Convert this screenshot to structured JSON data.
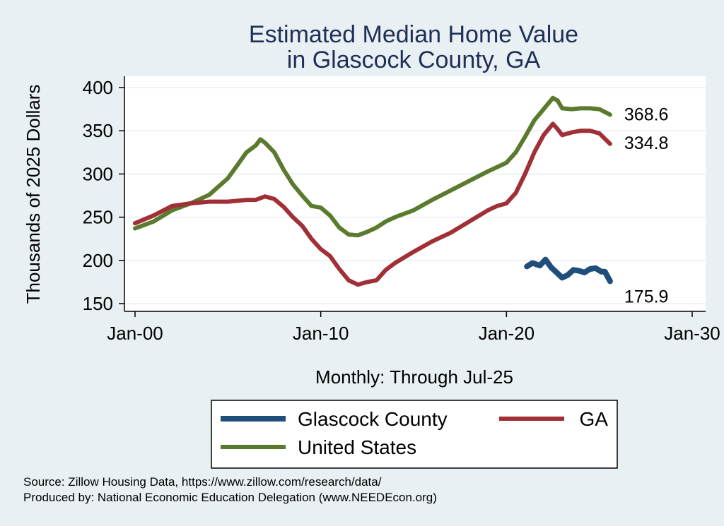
{
  "chart_data": {
    "type": "line",
    "title": [
      "Estimated Median Home Value",
      "in Glascock County, GA"
    ],
    "ylabel": "Thousands of 2025 Dollars",
    "xlabel": "Monthly: Through Jul-25",
    "xlim": [
      2000,
      2030
    ],
    "ylim": [
      140,
      410
    ],
    "yticks": [
      150,
      200,
      250,
      300,
      350,
      400
    ],
    "yticklabels": [
      "150",
      "200",
      "250",
      "300",
      "350",
      "400"
    ],
    "xticks": [
      2000,
      2010,
      2020,
      2030
    ],
    "xticklabels": [
      "Jan-00",
      "Jan-10",
      "Jan-20",
      "Jan-30"
    ],
    "grid": "horizontal",
    "series": [
      {
        "name": "United States",
        "color": "#5a7a2e",
        "end_label": "368.6",
        "x": [
          2000,
          2001,
          2002,
          2003,
          2004,
          2005,
          2005.5,
          2006,
          2006.5,
          2006.75,
          2007,
          2007.5,
          2008,
          2008.5,
          2009,
          2009.5,
          2010,
          2010.5,
          2011,
          2011.5,
          2012,
          2012.5,
          2013,
          2013.5,
          2014,
          2014.5,
          2015,
          2016,
          2017,
          2018,
          2019,
          2019.5,
          2020,
          2020.5,
          2021,
          2021.5,
          2022,
          2022.5,
          2022.75,
          2023,
          2023.5,
          2024,
          2024.5,
          2025,
          2025.58
        ],
        "y": [
          237,
          245,
          258,
          266,
          276,
          295,
          310,
          325,
          333,
          340,
          336,
          325,
          305,
          288,
          275,
          263,
          261,
          252,
          238,
          230,
          229,
          233,
          238,
          245,
          250,
          254,
          258,
          270,
          281,
          292,
          303,
          308,
          313,
          325,
          343,
          362,
          375,
          388,
          385,
          376,
          375,
          376,
          376,
          375,
          368.6
        ]
      },
      {
        "name": "GA",
        "color": "#a03036",
        "end_label": "334.8",
        "x": [
          2000,
          2001,
          2002,
          2003,
          2004,
          2005,
          2006,
          2006.5,
          2007,
          2007.5,
          2008,
          2008.5,
          2009,
          2009.5,
          2010,
          2010.5,
          2011,
          2011.5,
          2012,
          2012.5,
          2013,
          2013.5,
          2014,
          2015,
          2016,
          2017,
          2018,
          2019,
          2019.5,
          2020,
          2020.5,
          2021,
          2021.5,
          2022,
          2022.5,
          2022.75,
          2023,
          2023.5,
          2024,
          2024.5,
          2025,
          2025.58
        ],
        "y": [
          243,
          252,
          263,
          266,
          268,
          268,
          270,
          270,
          274,
          271,
          262,
          250,
          240,
          225,
          213,
          205,
          190,
          177,
          172,
          175,
          177,
          189,
          197,
          210,
          222,
          232,
          245,
          258,
          263,
          266,
          278,
          300,
          325,
          345,
          358,
          352,
          345,
          348,
          350,
          350,
          347,
          334.8
        ]
      },
      {
        "name": "Glascock County",
        "color": "#1f4e7a",
        "end_label": "175.9",
        "x": [
          2021.1,
          2021.4,
          2021.8,
          2022.1,
          2022.4,
          2022.7,
          2023,
          2023.3,
          2023.6,
          2023.9,
          2024.2,
          2024.5,
          2024.8,
          2025.1,
          2025.3,
          2025.58
        ],
        "y": [
          193,
          197,
          194,
          201,
          192,
          186,
          180,
          183,
          189,
          188,
          186,
          190,
          191,
          187,
          187,
          175.9
        ]
      }
    ],
    "legend": [
      {
        "label": "Glascock County",
        "color": "#1f4e7a"
      },
      {
        "label": "GA",
        "color": "#a03036"
      },
      {
        "label": "United States",
        "color": "#5a7a2e"
      }
    ]
  },
  "source": {
    "line1": "Source: Zillow Housing Data, https://www.zillow.com/research/data/",
    "line2": "Produced by: National Economic Education Delegation (www.NEEDEcon.org)"
  }
}
